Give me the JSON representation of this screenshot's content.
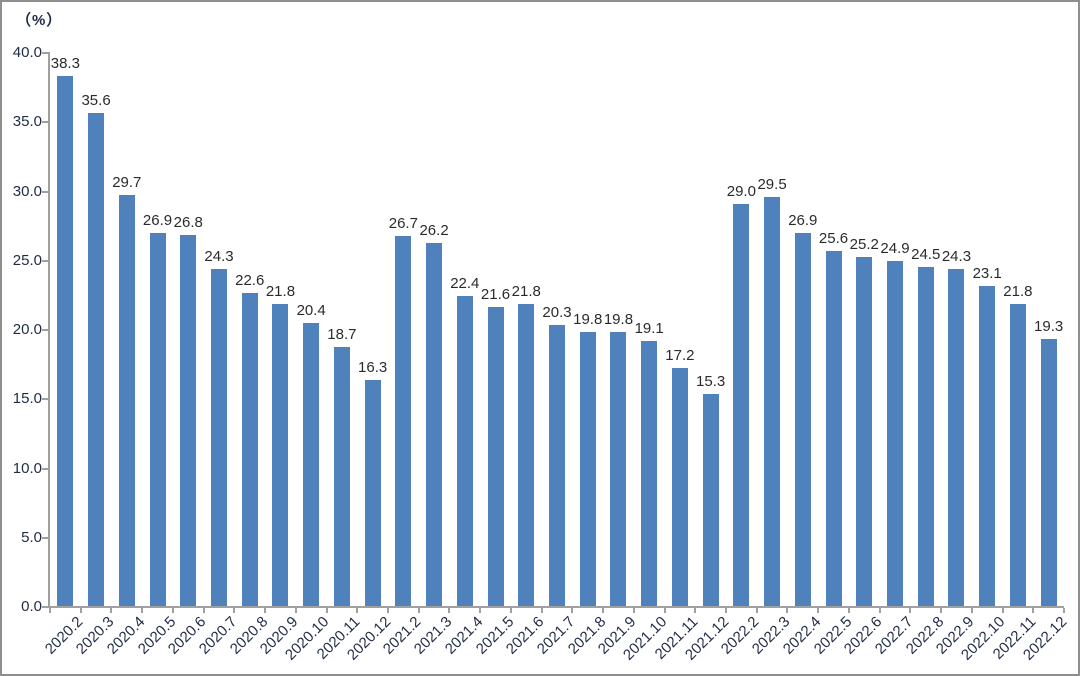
{
  "chart_data": {
    "type": "bar",
    "title": "",
    "unit_label": "（%）",
    "categories": [
      "2020.2",
      "2020.3",
      "2020.4",
      "2020.5",
      "2020.6",
      "2020.7",
      "2020.8",
      "2020.9",
      "2020.10",
      "2020.11",
      "2020.12",
      "2021.2",
      "2021.3",
      "2021.4",
      "2021.5",
      "2021.6",
      "2021.7",
      "2021.8",
      "2021.9",
      "2021.10",
      "2021.11",
      "2021.12",
      "2022.2",
      "2022.3",
      "2022.4",
      "2022.5",
      "2022.6",
      "2022.7",
      "2022.8",
      "2022.9",
      "2022.10",
      "2022.11",
      "2022.12"
    ],
    "values": [
      38.3,
      35.6,
      29.7,
      26.9,
      26.8,
      24.3,
      22.6,
      21.8,
      20.4,
      18.7,
      16.3,
      26.7,
      26.2,
      22.4,
      21.6,
      21.8,
      20.3,
      19.8,
      19.8,
      19.1,
      17.2,
      15.3,
      29.0,
      29.5,
      26.9,
      25.6,
      25.2,
      24.9,
      24.5,
      24.3,
      23.1,
      21.8,
      19.3
    ],
    "value_labels": [
      "38.3",
      "35.6",
      "29.7",
      "26.9",
      "26.8",
      "24.3",
      "22.6",
      "21.8",
      "20.4",
      "18.7",
      "16.3",
      "26.7",
      "26.2",
      "22.4",
      "21.6",
      "21.8",
      "20.3",
      "19.8",
      "19.8",
      "19.1",
      "17.2",
      "15.3",
      "29.0",
      "29.5",
      "26.9",
      "25.6",
      "25.2",
      "24.9",
      "24.5",
      "24.3",
      "23.1",
      "21.8",
      "19.3"
    ],
    "xlabel": "",
    "ylabel": "",
    "ylim": [
      0,
      40
    ],
    "ytick_step": 5,
    "ytick_labels": [
      "0.0",
      "5.0",
      "10.0",
      "15.0",
      "20.0",
      "25.0",
      "30.0",
      "35.0",
      "40.0"
    ],
    "grid": false,
    "legend_position": "none",
    "bar_color": "#4f81bd",
    "axis_color": "#a0a0a0",
    "axis_label_color": "#1f2b45",
    "value_label_color": "#2b2b2b"
  }
}
